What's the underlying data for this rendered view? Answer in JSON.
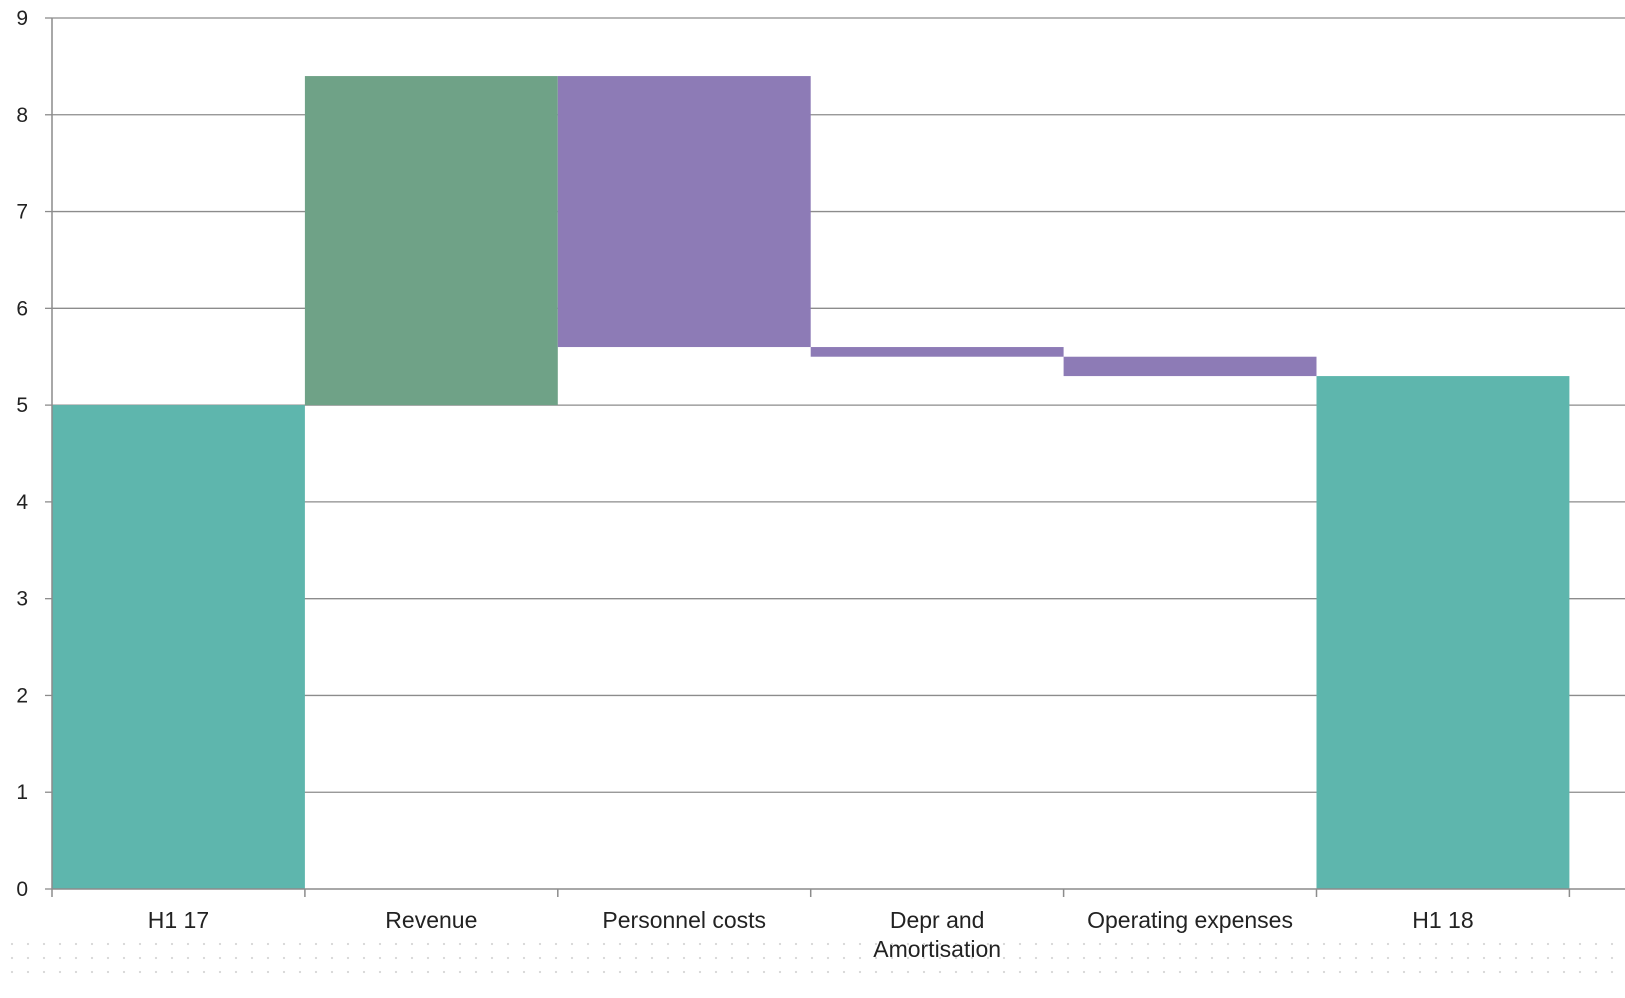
{
  "chart_data": {
    "type": "bar",
    "subtype": "waterfall",
    "title": "",
    "xlabel": "",
    "ylabel": "",
    "ylim": [
      0,
      9
    ],
    "yticks": [
      0,
      1,
      2,
      3,
      4,
      5,
      6,
      7,
      8,
      9
    ],
    "grid": true,
    "legend": "none",
    "categories": [
      {
        "label": [
          "H1 17"
        ],
        "kind": "total",
        "start": 0,
        "end": 5.0
      },
      {
        "label": [
          "Revenue"
        ],
        "kind": "increase",
        "start": 5.0,
        "end": 8.4
      },
      {
        "label": [
          "Personnel costs"
        ],
        "kind": "decrease",
        "start": 8.4,
        "end": 5.6
      },
      {
        "label": [
          "Depr and",
          "Amortisation"
        ],
        "kind": "decrease",
        "start": 5.6,
        "end": 5.5
      },
      {
        "label": [
          "Operating expenses"
        ],
        "kind": "decrease",
        "start": 5.5,
        "end": 5.3
      },
      {
        "label": [
          "H1 18"
        ],
        "kind": "total",
        "start": 0,
        "end": 5.3
      }
    ],
    "colors": {
      "total": "#5eb6ad",
      "increase": "#6fa287",
      "decrease": "#8d7bb6",
      "grid": "#8c8c8c",
      "axis": "#8c8c8c"
    }
  }
}
